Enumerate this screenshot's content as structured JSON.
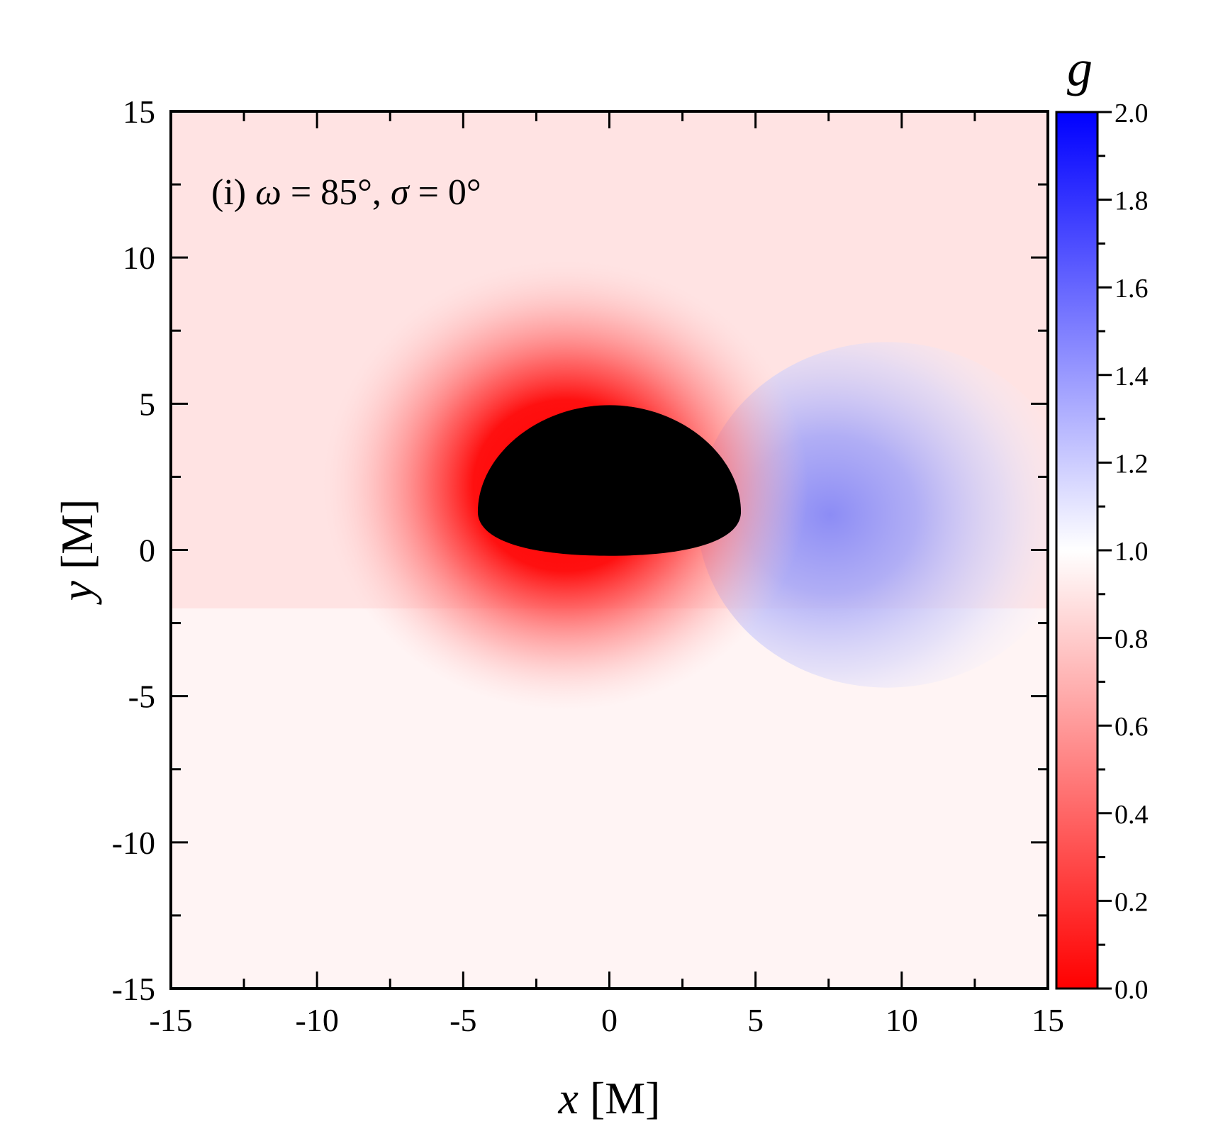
{
  "chart_data": {
    "type": "heatmap",
    "panel_label": {
      "prefix": "(i) ",
      "omega_symbol": "ω",
      "omega_value": " = 85°, ",
      "sigma_symbol": "σ",
      "sigma_value": " = 0°"
    },
    "xlabel": {
      "variable": "x",
      "unit": " [M]"
    },
    "ylabel": {
      "variable": "y",
      "unit": " [M]"
    },
    "xlim": [
      -15,
      15
    ],
    "ylim": [
      -15,
      15
    ],
    "x_ticks": [
      -15,
      -10,
      -5,
      0,
      5,
      10,
      15
    ],
    "y_ticks": [
      -15,
      -10,
      -5,
      0,
      5,
      10,
      15
    ],
    "x_tick_labels": [
      "-15",
      "-10",
      "-5",
      "0",
      "5",
      "10",
      "15"
    ],
    "y_tick_labels": [
      "-15",
      "-10",
      "-5",
      "0",
      "5",
      "10",
      "15"
    ],
    "colorbar": {
      "title": "g",
      "range": [
        0.0,
        2.0
      ],
      "ticks": [
        0.0,
        0.2,
        0.4,
        0.6,
        0.8,
        1.0,
        1.2,
        1.4,
        1.6,
        1.8,
        2.0
      ],
      "tick_labels": [
        "0.0",
        "0.2",
        "0.4",
        "0.6",
        "0.8",
        "1.0",
        "1.2",
        "1.4",
        "1.6",
        "1.8",
        "2.0"
      ],
      "color_low": "#ff0000",
      "color_mid": "#ffffff",
      "color_high": "#0000ff"
    },
    "shadow": {
      "description_color": "#000000",
      "x_range": [
        -4.5,
        4.5
      ],
      "y_range": [
        -0.2,
        4.95
      ],
      "center_x": 0,
      "top_y": 4.95
    },
    "field_notes": {
      "min_g_near_shadow": 0.0,
      "max_g_right_lobe": 1.25,
      "neutral_line_x_at_y0": 6.3
    }
  }
}
